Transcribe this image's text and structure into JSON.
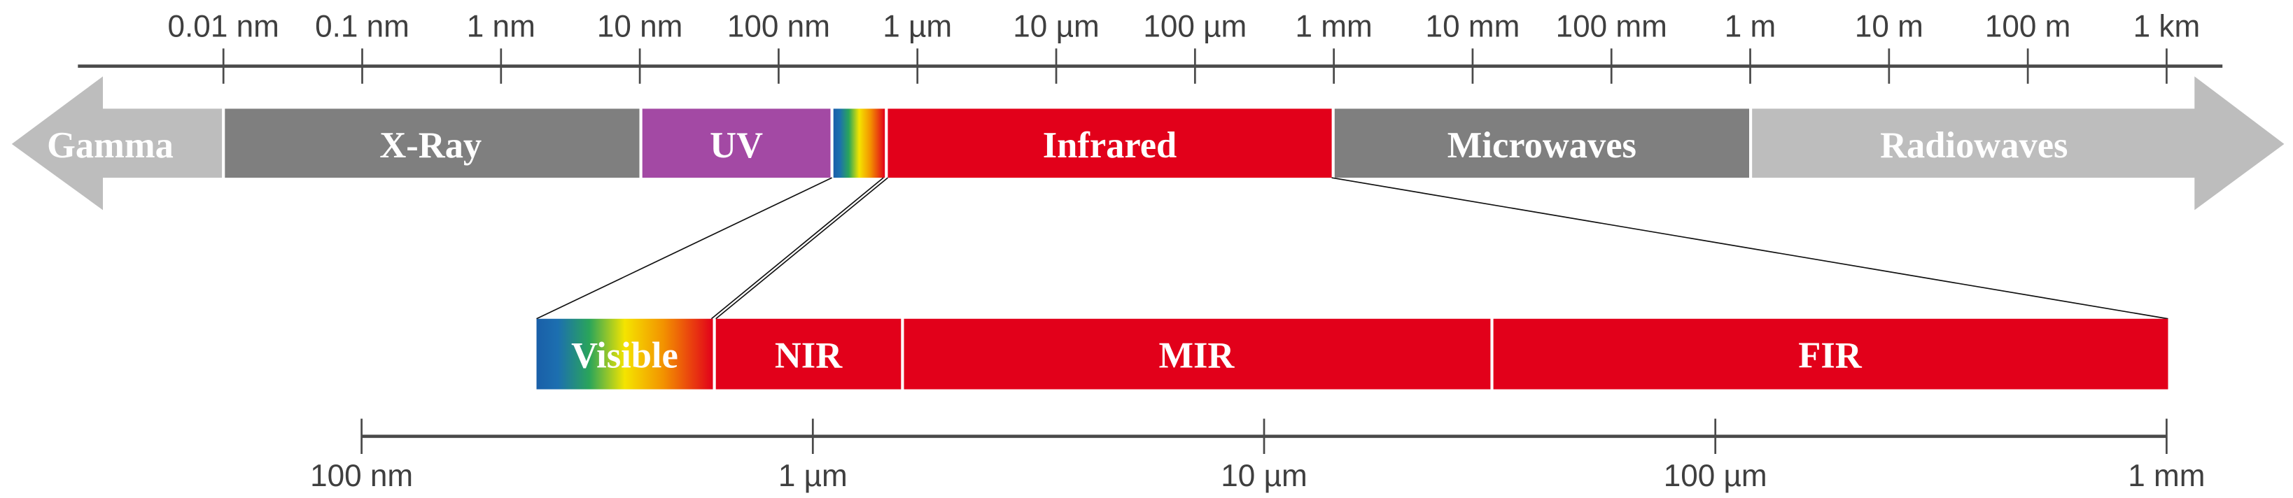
{
  "top_scale": {
    "ticks": [
      "0.01 nm",
      "0.1 nm",
      "1 nm",
      "10 nm",
      "100 nm",
      "1 µm",
      "10 µm",
      "100 µm",
      "1 mm",
      "10 mm",
      "100 mm",
      "1 m",
      "10 m",
      "100 m",
      "1 km"
    ]
  },
  "main_band": {
    "gamma": {
      "label": "Gamma",
      "color": "#bdbdbd"
    },
    "xray": {
      "label": "X-Ray",
      "color": "#7f7f7f"
    },
    "uv": {
      "label": "UV",
      "color": "#a349a4"
    },
    "infrared": {
      "label": "Infrared",
      "color": "#e2001a"
    },
    "microwaves": {
      "label": "Microwaves",
      "color": "#7f7f7f"
    },
    "radiowaves": {
      "label": "Radiowaves",
      "color": "#bdbdbd"
    }
  },
  "detail_band": {
    "visible": {
      "label": "Visible"
    },
    "nir": {
      "label": "NIR",
      "color": "#e2001a"
    },
    "mir": {
      "label": "MIR",
      "color": "#e2001a"
    },
    "fir": {
      "label": "FIR",
      "color": "#e2001a"
    }
  },
  "bottom_scale": {
    "ticks": [
      "100 nm",
      "1 µm",
      "10 µm",
      "100 µm",
      "1 mm"
    ]
  }
}
